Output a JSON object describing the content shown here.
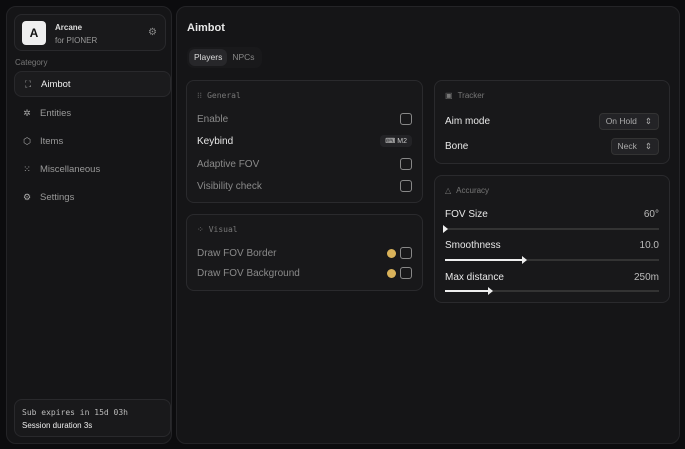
{
  "brand": {
    "logo": "A",
    "name": "Arcane",
    "sub": "for PIONER"
  },
  "sidebar": {
    "category_label": "Category",
    "items": [
      {
        "label": "Aimbot",
        "icon": "crosshair-icon",
        "active": true
      },
      {
        "label": "Entities",
        "icon": "entities-icon"
      },
      {
        "label": "Items",
        "icon": "box-icon"
      },
      {
        "label": "Miscellaneous",
        "icon": "grid-icon"
      },
      {
        "label": "Settings",
        "icon": "gear-icon"
      }
    ]
  },
  "subscription": {
    "expires": "Sub expires in 15d 03h",
    "session": "Session duration 3s"
  },
  "main": {
    "title": "Aimbot",
    "tabs": [
      {
        "label": "Players",
        "active": true
      },
      {
        "label": "NPCs"
      }
    ]
  },
  "general": {
    "title": "General",
    "enable": "Enable",
    "keybind": "Keybind",
    "keybind_value": "M2",
    "adaptive_fov": "Adaptive FOV",
    "visibility_check": "Visibility check"
  },
  "visual": {
    "title": "Visual",
    "fov_border": "Draw FOV Border",
    "fov_background": "Draw FOV Background",
    "color": "#d9b25a"
  },
  "tracker": {
    "title": "Tracker",
    "aim_mode": "Aim mode",
    "aim_mode_value": "On Hold",
    "bone": "Bone",
    "bone_value": "Neck"
  },
  "accuracy": {
    "title": "Accuracy",
    "fov_size": "FOV Size",
    "fov_size_value": "60°",
    "fov_size_percent": 0,
    "smoothness": "Smoothness",
    "smoothness_value": "10.0",
    "smoothness_percent": 37,
    "max_distance": "Max distance",
    "max_distance_value": "250m",
    "max_distance_percent": 21
  }
}
